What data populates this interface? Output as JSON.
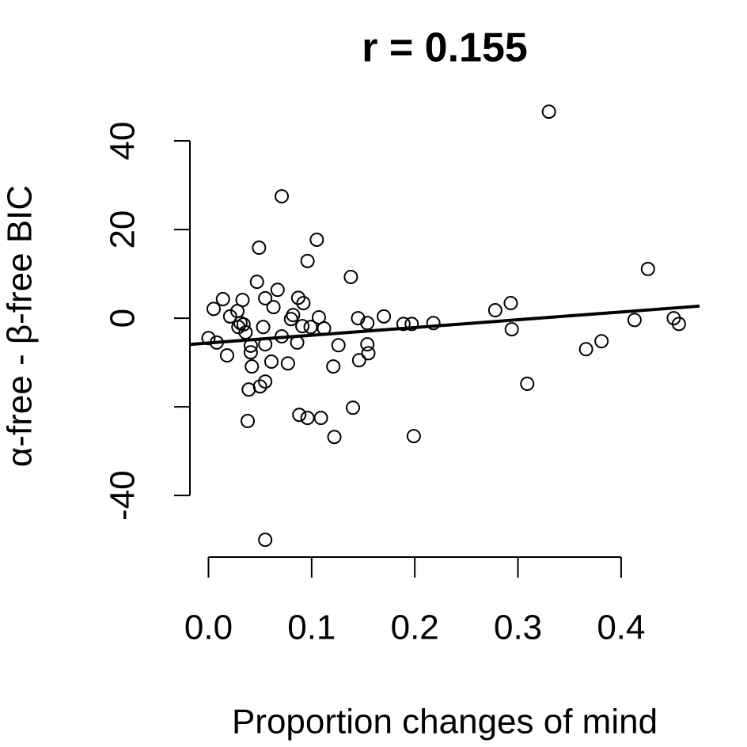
{
  "chart_data": {
    "type": "scatter",
    "title": "r =  0.155",
    "xlabel": "Proportion changes of mind",
    "ylabel": "α-free - β-free BIC",
    "x": [
      0.0,
      0.005,
      0.008,
      0.014,
      0.018,
      0.021,
      0.028,
      0.029,
      0.033,
      0.031,
      0.034,
      0.036,
      0.038,
      0.039,
      0.041,
      0.041,
      0.042,
      0.047,
      0.049,
      0.05,
      0.053,
      0.055,
      0.055,
      0.055,
      0.055,
      0.061,
      0.063,
      0.067,
      0.071,
      0.071,
      0.077,
      0.08,
      0.082,
      0.086,
      0.087,
      0.088,
      0.091,
      0.092,
      0.096,
      0.096,
      0.099,
      0.105,
      0.107,
      0.109,
      0.112,
      0.121,
      0.122,
      0.126,
      0.138,
      0.14,
      0.145,
      0.146,
      0.154,
      0.154,
      0.155,
      0.17,
      0.189,
      0.197,
      0.199,
      0.218,
      0.278,
      0.293,
      0.294,
      0.309,
      0.33,
      0.366,
      0.381,
      0.413,
      0.426,
      0.451,
      0.456
    ],
    "values": [
      -4.5,
      2.1,
      -5.5,
      4.3,
      -8.4,
      0.4,
      1.6,
      -2.0,
      4.1,
      -1.1,
      -1.4,
      -3.2,
      -23.2,
      -16.1,
      -6.2,
      -7.7,
      -10.9,
      8.2,
      15.9,
      -15.4,
      -2.0,
      4.5,
      -14.3,
      -5.9,
      -50,
      -9.8,
      2.5,
      6.4,
      27.5,
      -4.1,
      -10.2,
      -0.2,
      0.7,
      -5.5,
      4.6,
      -21.8,
      -1.8,
      3.4,
      12.9,
      -22.5,
      -2.0,
      17.7,
      0.2,
      -22.5,
      -2.3,
      -10.9,
      -26.8,
      -6.1,
      9.3,
      -20.2,
      0,
      -9.5,
      -1.1,
      -5.9,
      -7.9,
      0.4,
      -1.3,
      -1.3,
      -26.6,
      -1.1,
      1.8,
      3.4,
      -2.5,
      -14.8,
      46.6,
      -7.0,
      -5.2,
      -0.4,
      11.1,
      0,
      -1.3
    ],
    "color": "#000000",
    "fit": {
      "intercept": -5.6,
      "slope": 17.5
    },
    "xlim": [
      -0.018,
      0.476
    ],
    "ylim": [
      -53.9,
      50.9
    ],
    "xticks": [
      {
        "value": 0,
        "label": "0.0"
      },
      0.1,
      0.2,
      0.3,
      0.4
    ],
    "yticks": [
      -40,
      {
        "value": -20,
        "label": null
      },
      0,
      20,
      40
    ]
  }
}
